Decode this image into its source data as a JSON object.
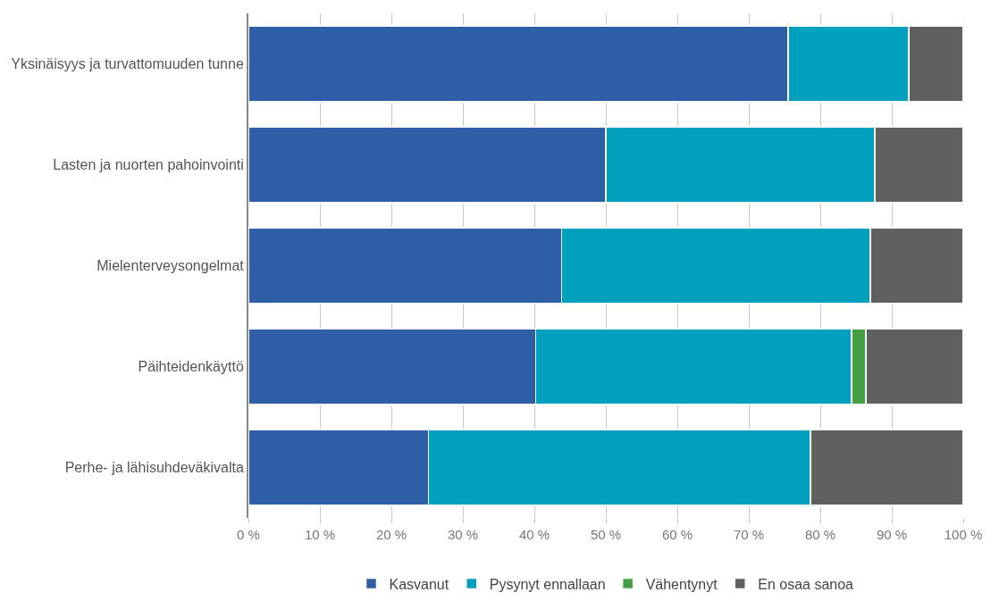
{
  "chart_data": {
    "type": "bar",
    "orientation": "horizontal",
    "stacked": true,
    "categories": [
      "Yksinäisyys ja turvattomuuden tunne",
      "Lasten ja nuorten pahoinvointi",
      "Mielenterveysongelmat",
      "Päihteidenkäyttö",
      "Perhe- ja lähisuhdeväkivalta"
    ],
    "series": [
      {
        "name": "Kasvanut",
        "color": "#2e5fa6",
        "values": [
          75.5,
          50.0,
          43.8,
          40.2,
          25.2
        ]
      },
      {
        "name": "Pysynyt ennallaan",
        "color": "#00a0be",
        "values": [
          16.9,
          37.6,
          43.2,
          44.2,
          53.4
        ]
      },
      {
        "name": "Vähentynyt",
        "color": "#45a045",
        "values": [
          0,
          0,
          0,
          2.0,
          0
        ]
      },
      {
        "name": "En osaa sanoa",
        "color": "#606060",
        "values": [
          7.6,
          12.4,
          13.0,
          13.6,
          21.4
        ]
      }
    ],
    "xlim": [
      0,
      100
    ],
    "xticks": [
      {
        "value": 0,
        "label": "0 %"
      },
      {
        "value": 10,
        "label": "10 %"
      },
      {
        "value": 20,
        "label": "20 %"
      },
      {
        "value": 30,
        "label": "30 %"
      },
      {
        "value": 40,
        "label": "40 %"
      },
      {
        "value": 50,
        "label": "50 %"
      },
      {
        "value": 60,
        "label": "60 %"
      },
      {
        "value": 70,
        "label": "70 %"
      },
      {
        "value": 80,
        "label": "80 %"
      },
      {
        "value": 90,
        "label": "90 %"
      },
      {
        "value": 100,
        "label": "100 %"
      }
    ],
    "grid": "x",
    "legend": "bottom"
  }
}
